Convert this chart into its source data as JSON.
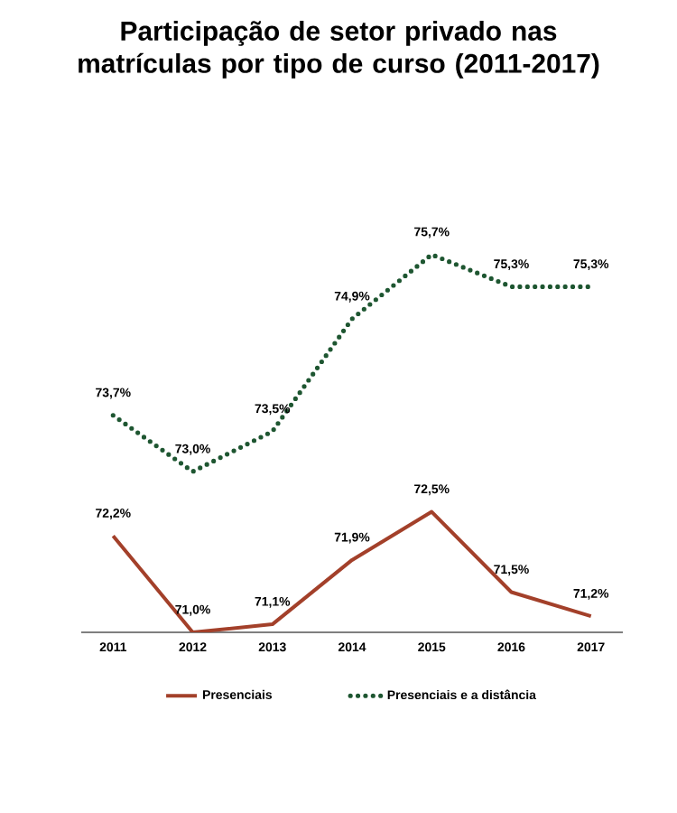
{
  "chart_data": {
    "type": "line",
    "title": "Participação de setor privado nas matrículas por tipo de curso (2011-2017)",
    "categories": [
      "2011",
      "2012",
      "2013",
      "2014",
      "2015",
      "2016",
      "2017"
    ],
    "series": [
      {
        "name": "Presenciais",
        "color": "#a3402a",
        "line_style": "solid",
        "values": [
          72.2,
          71.0,
          71.1,
          71.9,
          72.5,
          71.5,
          71.2
        ],
        "value_labels": [
          "72,2%",
          "71,0%",
          "71,1%",
          "71,9%",
          "72,5%",
          "71,5%",
          "71,2%"
        ]
      },
      {
        "name": "Presenciais e a distância",
        "color": "#1e5631",
        "line_style": "dotted",
        "values": [
          73.7,
          73.0,
          73.5,
          74.9,
          75.7,
          75.3,
          75.3
        ],
        "value_labels": [
          "73,7%",
          "73,0%",
          "73,5%",
          "74,9%",
          "75,7%",
          "75,3%",
          "75,3%"
        ]
      }
    ],
    "tick_labels": "x",
    "grid": false,
    "legend": "bottom",
    "marker": "none"
  }
}
